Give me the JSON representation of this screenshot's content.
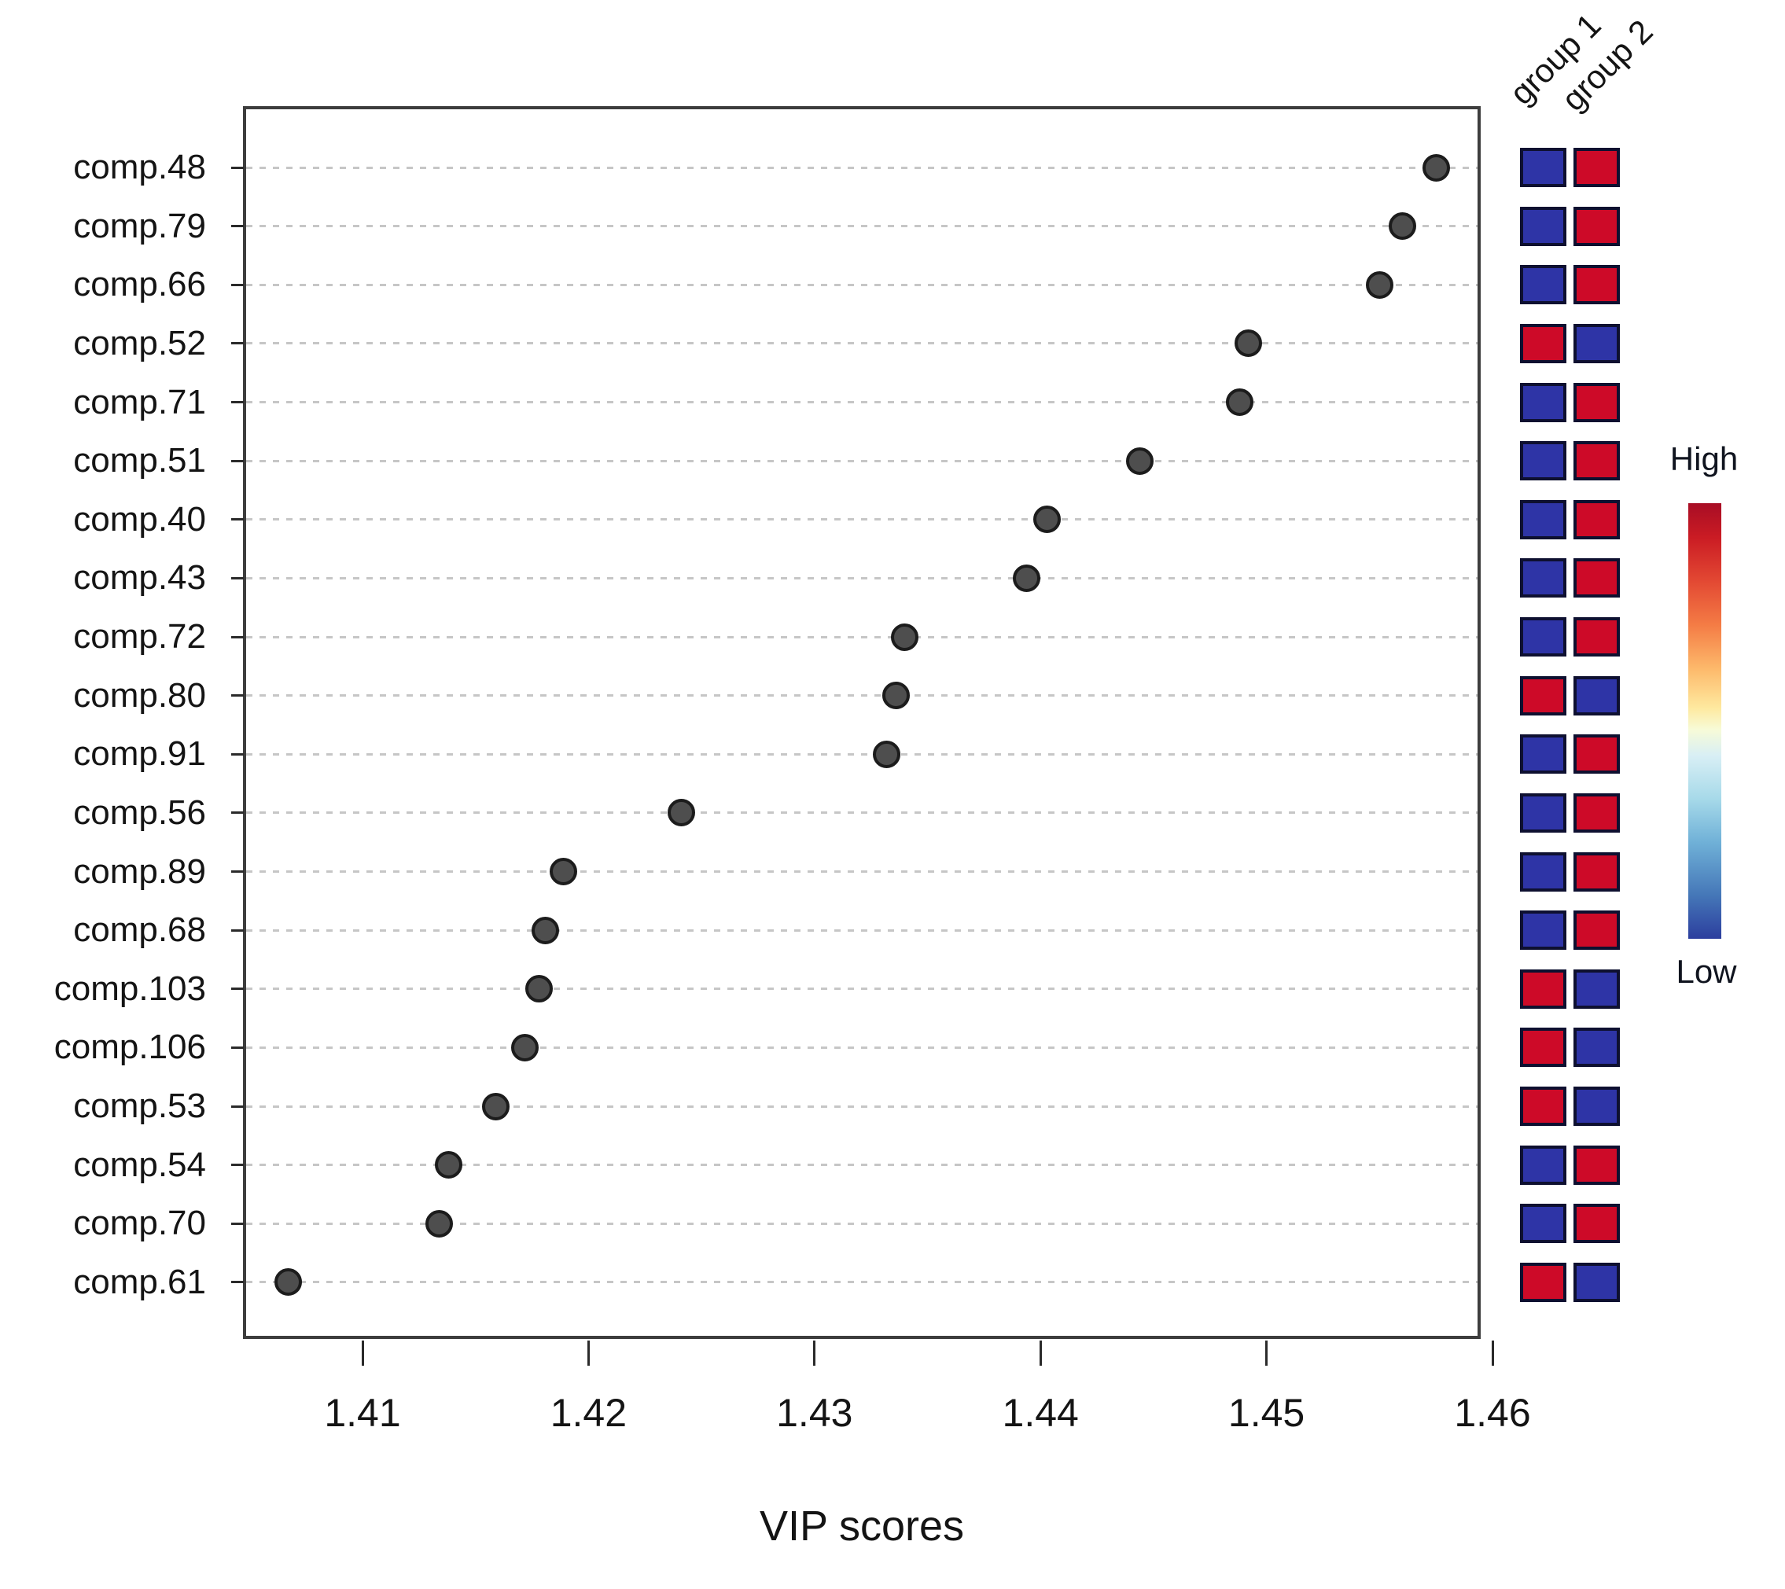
{
  "chart_data": {
    "type": "scatter",
    "xlabel": "VIP scores",
    "x_ticks": [
      "1.41",
      "1.42",
      "1.43",
      "1.44",
      "1.45",
      "1.46"
    ],
    "x_tick_values": [
      1.41,
      1.42,
      1.43,
      1.44,
      1.45,
      1.46
    ],
    "xlim": [
      1.4047,
      1.4597
    ],
    "grid": "horizontal dotted",
    "categories": [
      "comp.48",
      "comp.79",
      "comp.66",
      "comp.52",
      "comp.71",
      "comp.51",
      "comp.40",
      "comp.43",
      "comp.72",
      "comp.80",
      "comp.91",
      "comp.56",
      "comp.89",
      "comp.68",
      "comp.103",
      "comp.106",
      "comp.53",
      "comp.54",
      "comp.70",
      "comp.61"
    ],
    "values": [
      1.4575,
      1.456,
      1.455,
      1.4492,
      1.4488,
      1.4444,
      1.4403,
      1.4394,
      1.434,
      1.4336,
      1.4332,
      1.4241,
      1.4189,
      1.4181,
      1.4178,
      1.4172,
      1.4159,
      1.4138,
      1.4134,
      1.4067
    ],
    "point_color": "#4e4e4e",
    "heatmap": {
      "columns": [
        "group 1",
        "group 2"
      ],
      "group1": [
        "low",
        "low",
        "low",
        "high",
        "low",
        "low",
        "low",
        "low",
        "low",
        "high",
        "low",
        "low",
        "low",
        "low",
        "high",
        "high",
        "high",
        "low",
        "low",
        "high"
      ],
      "group2": [
        "high",
        "high",
        "high",
        "low",
        "high",
        "high",
        "high",
        "high",
        "high",
        "low",
        "high",
        "high",
        "high",
        "high",
        "low",
        "low",
        "low",
        "high",
        "high",
        "low"
      ],
      "low_color": "#2e34a6",
      "high_color": "#cd0a28"
    },
    "colorbar": {
      "high_label": "High",
      "low_label": "Low",
      "gradient_stops": [
        "#a80d25 0%",
        "#cb1c24 8%",
        "#e34933 18%",
        "#f47c45 28%",
        "#fdb96b 38%",
        "#fee99f 47%",
        "#f7fbd8 52%",
        "#d8eff5 58%",
        "#a6d9e9 68%",
        "#6fb0d7 78%",
        "#4577b8 90%",
        "#2c3e9e 100%"
      ]
    }
  }
}
